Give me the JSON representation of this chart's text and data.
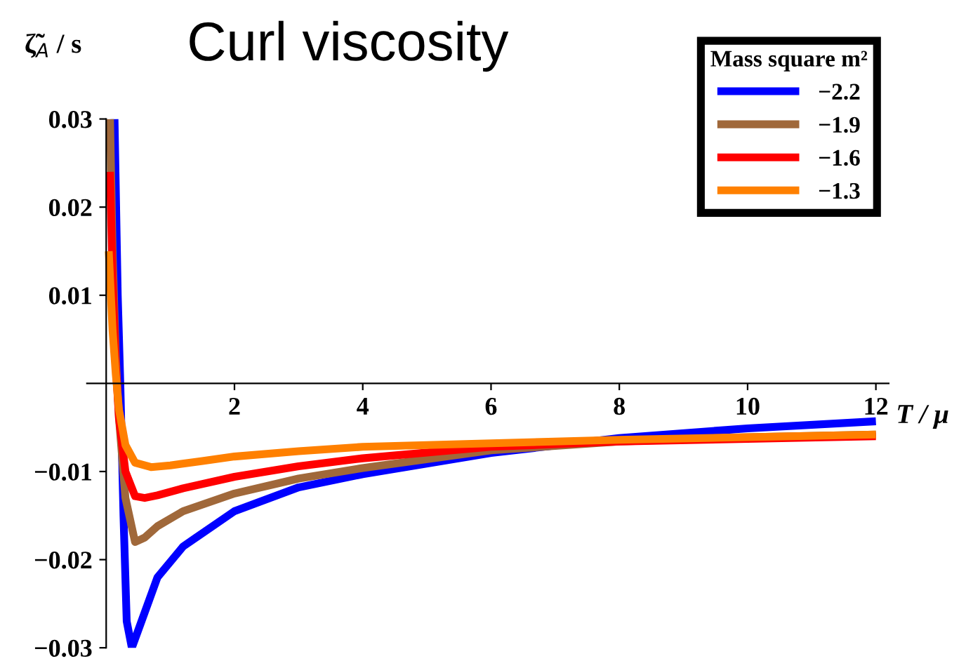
{
  "chart_data": {
    "type": "line",
    "title": "Curl viscosity",
    "xlabel": "T / μ",
    "ylabel": "ζ̃$_{A}$ / s",
    "legend_title": "Mass square m²",
    "xlim": [
      -0.3,
      12.2
    ],
    "ylim": [
      -0.03,
      0.03
    ],
    "xticks": [
      2,
      4,
      6,
      8,
      10,
      12
    ],
    "yticks": [
      {
        "value": -0.03,
        "label": "−0.03"
      },
      {
        "value": -0.02,
        "label": "−0.02"
      },
      {
        "value": -0.01,
        "label": "−0.01"
      },
      {
        "value": 0.01,
        "label": "0.01"
      },
      {
        "value": 0.02,
        "label": "0.02"
      },
      {
        "value": 0.03,
        "label": "0.03"
      }
    ],
    "grid": false,
    "legend": "top right",
    "marker": "none",
    "line_style": "solid",
    "series": [
      {
        "name": "−2.2",
        "color": "#0000ff",
        "x": [
          0.13,
          0.18,
          0.22,
          0.27,
          0.32,
          0.4,
          0.55,
          0.8,
          1.2,
          2,
          3,
          4,
          6,
          8,
          10,
          12
        ],
        "values": [
          0.03,
          0.01,
          0,
          -0.015,
          -0.027,
          -0.03,
          -0.027,
          -0.022,
          -0.0185,
          -0.0145,
          -0.0118,
          -0.0103,
          -0.0079,
          -0.0062,
          -0.0051,
          -0.0043
        ]
      },
      {
        "name": "−1.9",
        "color": "#a0683a",
        "x": [
          0.06,
          0.1,
          0.15,
          0.2,
          0.3,
          0.45,
          0.6,
          0.8,
          1.2,
          2,
          3,
          4,
          6,
          8,
          10,
          12
        ],
        "values": [
          0.03,
          0.015,
          0.003,
          -0.004,
          -0.013,
          -0.018,
          -0.0175,
          -0.0162,
          -0.0145,
          -0.0125,
          -0.0108,
          -0.0096,
          -0.0076,
          -0.0066,
          -0.0061,
          -0.0058
        ]
      },
      {
        "name": "−1.6",
        "color": "#ff0000",
        "x": [
          0.06,
          0.1,
          0.15,
          0.2,
          0.3,
          0.45,
          0.6,
          0.8,
          1.2,
          2,
          3,
          4,
          6,
          8,
          10,
          12
        ],
        "values": [
          0.024,
          0.012,
          0.002,
          -0.004,
          -0.01,
          -0.0128,
          -0.013,
          -0.0127,
          -0.0119,
          -0.0106,
          -0.0094,
          -0.0085,
          -0.0072,
          -0.0066,
          -0.0063,
          -0.006
        ]
      },
      {
        "name": "−1.3",
        "color": "#ff8000",
        "x": [
          0.04,
          0.1,
          0.15,
          0.2,
          0.3,
          0.45,
          0.7,
          1,
          1.5,
          2,
          3,
          4,
          6,
          8,
          10,
          12
        ],
        "values": [
          0.015,
          0.006,
          0.001,
          -0.003,
          -0.007,
          -0.009,
          -0.0095,
          -0.0093,
          -0.0088,
          -0.0083,
          -0.0077,
          -0.0072,
          -0.0068,
          -0.0064,
          -0.0061,
          -0.0058
        ]
      }
    ]
  }
}
